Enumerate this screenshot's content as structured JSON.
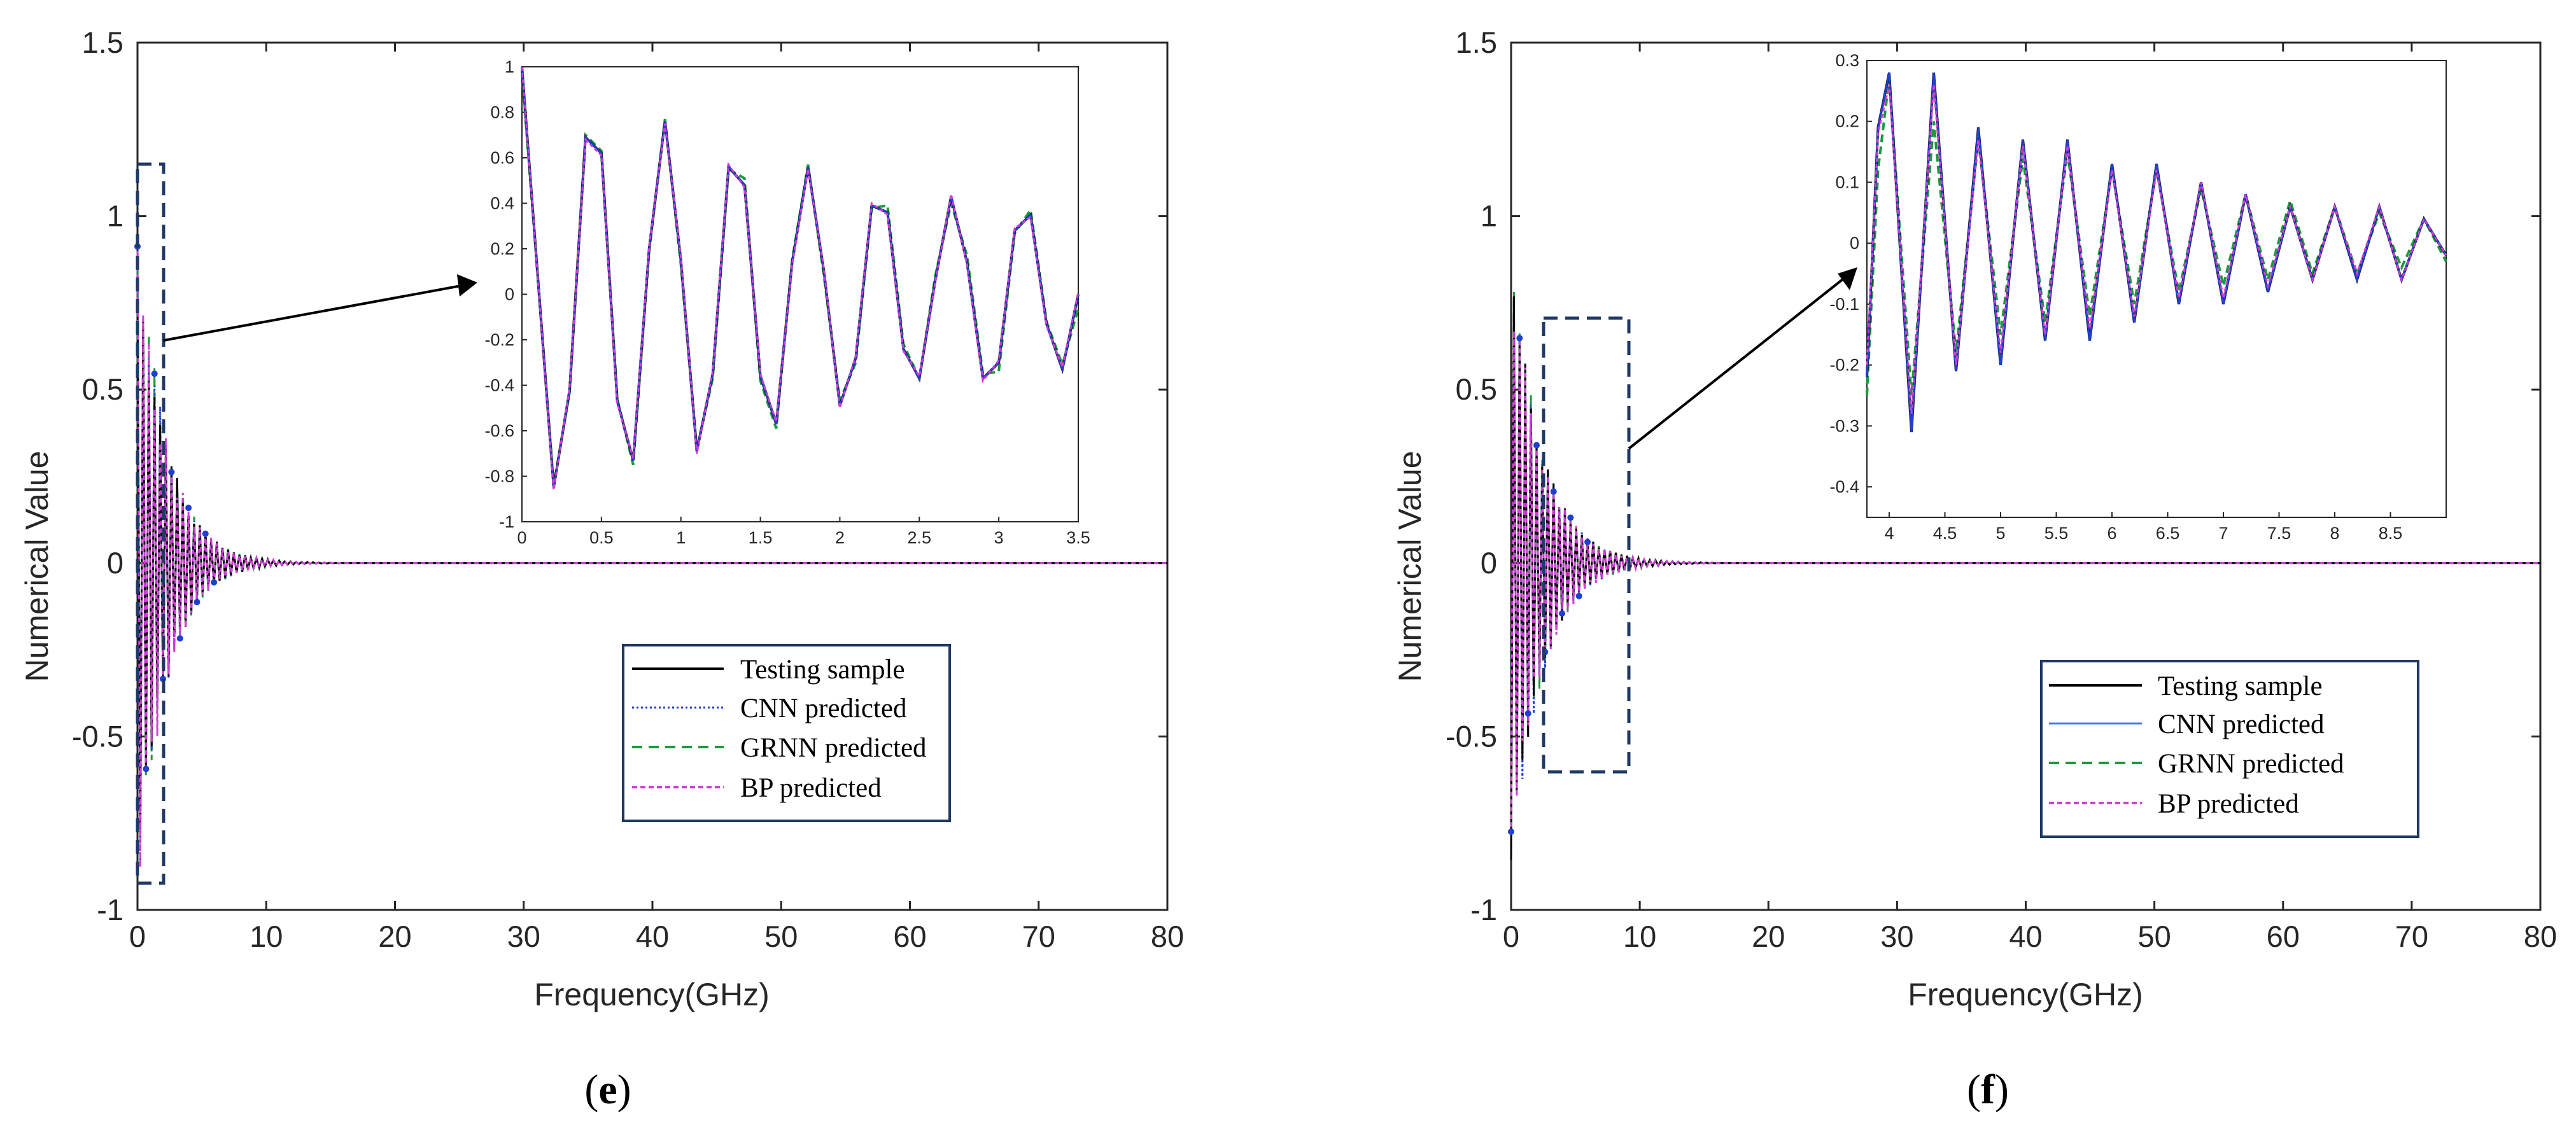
{
  "chart_data": [
    {
      "type": "line",
      "panel_label": "e",
      "xlabel": "Frequency(GHz)",
      "ylabel": "Numerical Value",
      "xlim": [
        0,
        80
      ],
      "ylim": [
        -1,
        1.5
      ],
      "xticks": [
        "0",
        "10",
        "20",
        "30",
        "40",
        "50",
        "60",
        "70",
        "80"
      ],
      "yticks": [
        "-1",
        "-0.5",
        "0",
        "0.5",
        "1",
        "1.5"
      ],
      "legend": [
        "Testing sample",
        "CNN predicted",
        "GRNN predicted",
        "BP predicted"
      ],
      "legend_position": "lower-right",
      "main_signal": {
        "peak": 1.0,
        "frequency_step": 0.22,
        "decay_rate": 0.45,
        "description": "damped oscillation decaying to 0 by ~15 GHz"
      },
      "inset": {
        "xlim": [
          0,
          3.5
        ],
        "ylim": [
          -1,
          1
        ],
        "xticks": [
          "0",
          "0.5",
          "1",
          "1.5",
          "2",
          "2.5",
          "3",
          "3.5"
        ],
        "yticks": [
          "-1",
          "-0.8",
          "-0.6",
          "-0.4",
          "-0.2",
          "0",
          "0.2",
          "0.4",
          "0.6",
          "0.8",
          "1"
        ],
        "x": [
          0,
          0.2,
          0.3,
          0.4,
          0.5,
          0.6,
          0.7,
          0.8,
          0.9,
          1.0,
          1.1,
          1.2,
          1.3,
          1.4,
          1.5,
          1.6,
          1.7,
          1.8,
          1.9,
          2.0,
          2.1,
          2.2,
          2.3,
          2.4,
          2.5,
          2.6,
          2.7,
          2.8,
          2.9,
          3.0,
          3.1,
          3.2,
          3.3,
          3.4,
          3.5
        ],
        "series": [
          {
            "name": "Testing sample",
            "values": [
              1.0,
              -0.85,
              -0.42,
              0.69,
              0.62,
              -0.47,
              -0.73,
              0.2,
              0.76,
              0.15,
              -0.69,
              -0.35,
              0.56,
              0.48,
              -0.36,
              -0.57,
              0.14,
              0.56,
              0.1,
              -0.49,
              -0.28,
              0.39,
              0.36,
              -0.24,
              -0.37,
              0.06,
              0.43,
              0.14,
              -0.37,
              -0.3,
              0.28,
              0.35,
              -0.13,
              -0.33,
              0.0
            ]
          },
          {
            "name": "CNN predicted",
            "values": [
              1.0,
              -0.85,
              -0.42,
              0.69,
              0.62,
              -0.47,
              -0.73,
              0.2,
              0.76,
              0.15,
              -0.69,
              -0.35,
              0.56,
              0.48,
              -0.36,
              -0.57,
              0.14,
              0.56,
              0.1,
              -0.49,
              -0.28,
              0.39,
              0.36,
              -0.24,
              -0.37,
              0.06,
              0.43,
              0.14,
              -0.37,
              -0.3,
              0.28,
              0.35,
              -0.13,
              -0.33,
              0.0
            ]
          },
          {
            "name": "GRNN predicted",
            "values": [
              0.98,
              -0.84,
              -0.43,
              0.7,
              0.63,
              -0.46,
              -0.75,
              0.19,
              0.77,
              0.13,
              -0.68,
              -0.37,
              0.55,
              0.51,
              -0.38,
              -0.59,
              0.15,
              0.57,
              0.08,
              -0.47,
              -0.3,
              0.38,
              0.39,
              -0.22,
              -0.37,
              0.08,
              0.4,
              0.17,
              -0.35,
              -0.34,
              0.27,
              0.37,
              -0.12,
              -0.31,
              -0.06
            ]
          },
          {
            "name": "BP predicted",
            "values": [
              1.0,
              -0.86,
              -0.41,
              0.68,
              0.61,
              -0.48,
              -0.72,
              0.21,
              0.75,
              0.16,
              -0.7,
              -0.34,
              0.57,
              0.47,
              -0.35,
              -0.56,
              0.13,
              0.55,
              0.11,
              -0.5,
              -0.27,
              0.4,
              0.35,
              -0.25,
              -0.36,
              0.05,
              0.44,
              0.13,
              -0.38,
              -0.29,
              0.29,
              0.34,
              -0.14,
              -0.32,
              0.01
            ]
          }
        ]
      }
    },
    {
      "type": "line",
      "panel_label": "f",
      "xlabel": "Frequency(GHz)",
      "ylabel": "Numerical Value",
      "xlim": [
        0,
        80
      ],
      "ylim": [
        -1,
        1.5
      ],
      "xticks": [
        "0",
        "10",
        "20",
        "30",
        "40",
        "50",
        "60",
        "70",
        "80"
      ],
      "yticks": [
        "-1",
        "-0.5",
        "0",
        "0.5",
        "1",
        "1.5"
      ],
      "legend": [
        "Testing sample",
        "CNN predicted",
        "GRNN predicted",
        "BP predicted"
      ],
      "legend_position": "lower-right",
      "main_signal": {
        "peak": -0.92,
        "frequency_step": 0.22,
        "decay_rate": 0.42,
        "description": "damped oscillation decaying to 0 by ~15 GHz"
      },
      "inset": {
        "xlim": [
          3.8,
          9
        ],
        "ylim": [
          -0.45,
          0.3
        ],
        "xticks": [
          "4",
          "4.5",
          "5",
          "5.5",
          "6",
          "6.5",
          "7",
          "7.5",
          "8",
          "8.5"
        ],
        "yticks": [
          "-0.4",
          "-0.3",
          "-0.2",
          "-0.1",
          "0",
          "0.1",
          "0.2",
          "0.3"
        ],
        "x": [
          3.8,
          3.9,
          4.0,
          4.2,
          4.4,
          4.6,
          4.8,
          5.0,
          5.2,
          5.4,
          5.6,
          5.8,
          6.0,
          6.2,
          6.4,
          6.6,
          6.8,
          7.0,
          7.2,
          7.4,
          7.6,
          7.8,
          8.0,
          8.2,
          8.4,
          8.6,
          8.8,
          9.0
        ],
        "series": [
          {
            "name": "Testing sample",
            "values": [
              -0.22,
              0.19,
              0.28,
              -0.31,
              0.28,
              -0.21,
              0.19,
              -0.2,
              0.17,
              -0.16,
              0.17,
              -0.16,
              0.13,
              -0.13,
              0.13,
              -0.1,
              0.1,
              -0.1,
              0.08,
              -0.08,
              0.06,
              -0.06,
              0.06,
              -0.06,
              0.06,
              -0.06,
              0.04,
              -0.02
            ]
          },
          {
            "name": "CNN predicted",
            "values": [
              -0.22,
              0.19,
              0.28,
              -0.31,
              0.28,
              -0.21,
              0.19,
              -0.2,
              0.17,
              -0.16,
              0.17,
              -0.16,
              0.13,
              -0.13,
              0.13,
              -0.1,
              0.1,
              -0.1,
              0.08,
              -0.08,
              0.06,
              -0.06,
              0.06,
              -0.06,
              0.06,
              -0.06,
              0.04,
              -0.02
            ]
          },
          {
            "name": "GRNN predicted",
            "values": [
              -0.25,
              0.12,
              0.27,
              -0.25,
              0.2,
              -0.18,
              0.17,
              -0.15,
              0.14,
              -0.13,
              0.15,
              -0.12,
              0.12,
              -0.1,
              0.12,
              -0.08,
              0.09,
              -0.07,
              0.08,
              -0.06,
              0.07,
              -0.05,
              0.06,
              -0.05,
              0.05,
              -0.04,
              0.04,
              -0.03
            ]
          },
          {
            "name": "BP predicted",
            "values": [
              -0.2,
              0.18,
              0.26,
              -0.28,
              0.26,
              -0.2,
              0.17,
              -0.18,
              0.16,
              -0.15,
              0.16,
              -0.14,
              0.12,
              -0.12,
              0.12,
              -0.09,
              0.1,
              -0.09,
              0.08,
              -0.07,
              0.06,
              -0.06,
              0.06,
              -0.05,
              0.06,
              -0.06,
              0.04,
              -0.02
            ]
          }
        ]
      }
    }
  ],
  "style": {
    "colors": {
      "testing": "#000000",
      "cnn": "#1f3fd0",
      "grnn": "#1a9a3a",
      "bp": "#d23cd8",
      "frame": "#262626",
      "grid_box": "#1f3864",
      "arrow": "#000000"
    }
  }
}
